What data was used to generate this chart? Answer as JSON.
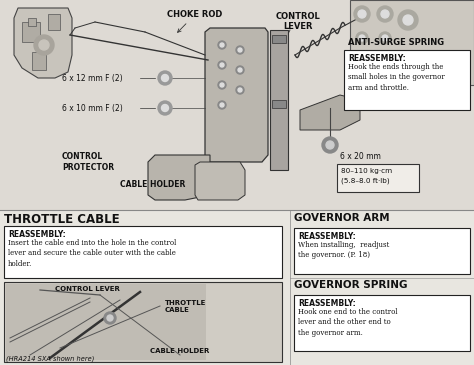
{
  "bg_color": "#e8e6e0",
  "text_color": "#111111",
  "box_bg": "#ffffff",
  "box_border": "#222222",
  "diagram_bg": "#e0ddd8",
  "labels": {
    "choke_rod": "CHOKE ROD",
    "control_lever": "CONTROL\nLEVER",
    "anti_surge_spring": "ANTI-SURGE SPRING",
    "bolt1": "6 x 12 mm F (2)",
    "bolt2": "6 x 10 mm F (2)",
    "control_protector": "CONTROL\nPROTECTOR",
    "cable_holder_top": "CABLE HOLDER",
    "throttle_cable_head": "THROTTLE CABLE",
    "governor_arm_head": "GOVERNOR ARM",
    "governor_spring_head": "GOVERNOR SPRING",
    "bolt3": "6 x 20 mm",
    "torque_line1": "80–110 kg·cm",
    "torque_line2": "(5.8–8.0 ft·lb)",
    "control_lever2": "CONTROL LEVER",
    "throttle_cable2": "THROTTLE\nCABLE",
    "cable_holder2": "CABLE HOLDER",
    "hra_note": "(HRA214 SXA shown here)"
  },
  "reassembly": {
    "anti_surge_title": "REASSEMBLY:",
    "anti_surge_body": "Hook the ends through the\nsmall holes in the governor\narm and throttle.",
    "governor_arm_title": "REASSEMBLY:",
    "governor_arm_body": "When installing,  readjust\nthe governor. (P. 18)",
    "governor_spring_title": "REASSEMBLY:",
    "governor_spring_body": "Hook one end to the control\nlever and the other end to\nthe governor arm.",
    "throttle_cable_title": "REASSEMBLY:",
    "throttle_cable_body": "Insert the cable end into the hole in the control\nlever and secure the cable outer with the cable\nholder."
  }
}
